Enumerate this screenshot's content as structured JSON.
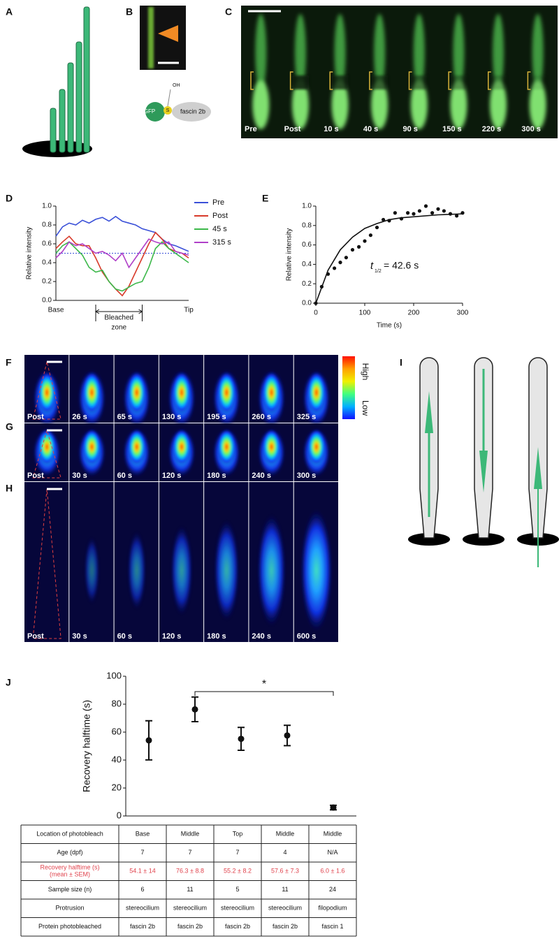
{
  "panel_labels": [
    "A",
    "B",
    "C",
    "D",
    "E",
    "F",
    "G",
    "H",
    "I",
    "J"
  ],
  "diagram_b": {
    "oh": "OH",
    "gfp": "GFP",
    "s": "S",
    "protein": "fascin 2b"
  },
  "images": {
    "C": [
      "Pre",
      "Post",
      "10 s",
      "40 s",
      "90 s",
      "150 s",
      "220 s",
      "300 s"
    ],
    "F": [
      "Post",
      "26 s",
      "65 s",
      "130 s",
      "195 s",
      "260 s",
      "325 s"
    ],
    "G": [
      "Post",
      "30 s",
      "60 s",
      "120 s",
      "180 s",
      "240 s",
      "300 s"
    ],
    "H": [
      "Post",
      "30 s",
      "60 s",
      "120 s",
      "180 s",
      "240 s",
      "600 s"
    ]
  },
  "colorbar": {
    "high": "High",
    "low": "Low"
  },
  "chart_data": [
    {
      "type": "line",
      "y_label": "Relative intensity",
      "categories": [
        "Base",
        null,
        null,
        null,
        null,
        null,
        null,
        null,
        null,
        null,
        null,
        null,
        null,
        null,
        null,
        null,
        null,
        null,
        null,
        null,
        "Tip"
      ],
      "annotation": [
        "Bleached",
        "zone"
      ],
      "hline": 0.5,
      "legend": "right",
      "ylim": [
        0,
        1
      ],
      "yticks": [
        {
          "value": 0,
          "label": "0.0"
        },
        0.2,
        0.4,
        0.6,
        0.8,
        {
          "value": 1,
          "label": "1.0"
        }
      ],
      "series": [
        {
          "name": "Pre",
          "color": "#3a50d8",
          "values": [
            0.68,
            0.78,
            0.82,
            0.8,
            0.85,
            0.82,
            0.86,
            0.88,
            0.84,
            0.89,
            0.84,
            0.82,
            0.8,
            0.76,
            0.74,
            0.72,
            0.65,
            0.6,
            0.58,
            0.55,
            0.52
          ]
        },
        {
          "name": "Post",
          "color": "#d83a2a",
          "values": [
            0.55,
            0.62,
            0.68,
            0.6,
            0.58,
            0.58,
            0.45,
            0.3,
            0.2,
            0.12,
            0.05,
            0.15,
            0.3,
            0.45,
            0.6,
            0.72,
            0.65,
            0.55,
            0.52,
            0.5,
            0.45
          ]
        },
        {
          "name": "45 s",
          "color": "#3cb84a",
          "values": [
            0.5,
            0.58,
            0.62,
            0.55,
            0.48,
            0.35,
            0.3,
            0.32,
            0.2,
            0.12,
            0.1,
            0.14,
            0.18,
            0.2,
            0.35,
            0.55,
            0.62,
            0.55,
            0.5,
            0.45,
            0.4
          ]
        },
        {
          "name": "315 s",
          "color": "#b040c8",
          "values": [
            0.45,
            0.52,
            0.62,
            0.58,
            0.6,
            0.55,
            0.5,
            0.52,
            0.48,
            0.42,
            0.5,
            0.35,
            0.45,
            0.55,
            0.65,
            0.62,
            0.6,
            0.62,
            0.52,
            0.5,
            0.48
          ]
        }
      ]
    },
    {
      "type": "scatter",
      "x_label": "Time (s)",
      "y_label": "Relative intensity",
      "color": "#111111",
      "x": [
        0,
        12,
        25,
        38,
        50,
        62,
        75,
        88,
        100,
        112,
        125,
        138,
        150,
        162,
        175,
        188,
        200,
        212,
        225,
        238,
        250,
        262,
        275,
        288,
        300
      ],
      "values": [
        0,
        0.17,
        0.3,
        0.36,
        0.42,
        0.47,
        0.55,
        0.58,
        0.64,
        0.7,
        0.78,
        0.86,
        0.85,
        0.93,
        0.87,
        0.93,
        0.92,
        0.95,
        1.0,
        0.93,
        0.97,
        0.95,
        0.92,
        0.9,
        0.93
      ],
      "fit": {
        "x": [
          0,
          25,
          50,
          75,
          100,
          125,
          150,
          175,
          200,
          250,
          300
        ],
        "values": [
          0,
          0.34,
          0.55,
          0.68,
          0.77,
          0.82,
          0.86,
          0.88,
          0.89,
          0.91,
          0.92
        ]
      },
      "annotation": {
        "symbol": "t",
        "subscript": "1/2",
        "text": "=  42.6 s"
      },
      "xlim": [
        0,
        300
      ],
      "xticks": [
        0,
        100,
        200,
        300
      ],
      "ylim": [
        0,
        1
      ],
      "yticks": [
        {
          "value": 0,
          "label": "0.0"
        },
        0.2,
        0.4,
        0.6,
        0.8,
        {
          "value": 1,
          "label": "1.0"
        }
      ]
    },
    {
      "type": "errorbar",
      "y_label": "Recovery halftime (s)",
      "color": "#111111",
      "values": [
        54.1,
        76.3,
        55.2,
        57.6,
        6.0
      ],
      "errors": [
        14,
        8.8,
        8.2,
        7.3,
        1.6
      ],
      "significance": {
        "text": "*",
        "between": [
          1,
          4
        ]
      },
      "ylim": [
        0,
        100
      ],
      "yticks": [
        0,
        20,
        40,
        60,
        80,
        100
      ]
    }
  ],
  "table": {
    "highlight": {
      "row": 2,
      "color": "#e0434d"
    },
    "rows": [
      [
        "Location of photobleach",
        "Base",
        "Middle",
        "Top",
        "Middle",
        "Middle"
      ],
      [
        "Age (dpf)",
        "7",
        "7",
        "7",
        "4",
        "N/A"
      ],
      [
        [
          "Recovery halftime (s)",
          "(mean ± SEM)"
        ],
        "54.1 ± 14",
        "76.3 ± 8.8",
        "55.2 ± 8.2",
        "57.6 ± 7.3",
        "6.0 ± 1.6"
      ],
      [
        "Sample size (n)",
        "6",
        "11",
        "5",
        "11",
        "24"
      ],
      [
        "Protrusion",
        "stereocilium",
        "stereocilium",
        "stereocilium",
        "stereocilium",
        "filopodium"
      ],
      [
        "Protein photobleached",
        "fascin 2b",
        "fascin 2b",
        "fascin 2b",
        "fascin 2b",
        "fascin 1"
      ]
    ]
  }
}
